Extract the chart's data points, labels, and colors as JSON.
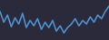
{
  "values": [
    32,
    20,
    28,
    15,
    25,
    18,
    30,
    14,
    22,
    16,
    24,
    12,
    20,
    14,
    22,
    10,
    16,
    8,
    14,
    18,
    24,
    16,
    22,
    18,
    26,
    20,
    28,
    24,
    32,
    38
  ],
  "line_color": "#4d8fcc",
  "background_color": "#2a2a3a",
  "ylim_min": 0,
  "ylim_max": 45,
  "line_width": 1.2
}
